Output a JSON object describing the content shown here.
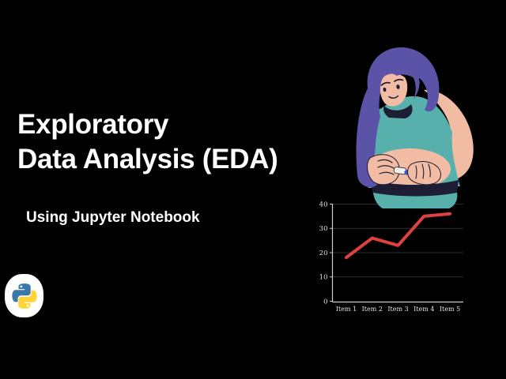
{
  "title": {
    "line1": "Exploratory",
    "line2": "Data Analysis (EDA)"
  },
  "subtitle": "Using Jupyter Notebook",
  "logo": {
    "icon": "python-logo",
    "blue": "#3b77a9",
    "yellow": "#ffd43b"
  },
  "illustration": {
    "description": "woman with purple hair in teal top pressing insulin pen to her belly",
    "hair_color": "#5b53a8",
    "skin_color": "#f2bca4",
    "top_color": "#58b0ac",
    "outline_color": "#1d1d33",
    "pen_color": "#f4f1ea",
    "pen_button_color": "#4153c6"
  },
  "colors": {
    "background": "#000000",
    "text": "#ffffff",
    "axis": "#cfcfcf",
    "grid": "#2d2d2d",
    "line": "#de4140"
  },
  "chart_data": {
    "type": "line",
    "categories": [
      "Item 1",
      "Item 2",
      "Item 3",
      "Item 4",
      "Item 5"
    ],
    "values": [
      18,
      26,
      23,
      35,
      36
    ],
    "y_ticks": [
      0,
      10,
      20,
      30,
      40
    ],
    "ylim": [
      0,
      40
    ],
    "series_color": "#de4140",
    "axis_color": "#cfcfcf",
    "grid_color": "#2d2d2d",
    "label_color": "#e3e3e3",
    "title": "",
    "xlabel": "",
    "ylabel": "",
    "grid": true,
    "legend": false
  }
}
